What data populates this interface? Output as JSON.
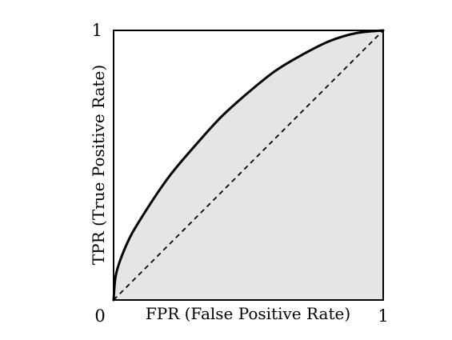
{
  "chart_data": {
    "type": "line",
    "title": "",
    "xlabel": "FPR (False Positive Rate)",
    "ylabel": "TPR (True Positive Rate)",
    "xlim": [
      0,
      1
    ],
    "ylim": [
      0,
      1
    ],
    "x_tick_labels": [
      "0",
      "1"
    ],
    "y_tick_labels": [
      "1"
    ],
    "grid": false,
    "area_under_curve_shaded": true,
    "series": [
      {
        "style": "solid",
        "x": [
          0,
          0.01,
          0.05,
          0.1,
          0.2,
          0.3,
          0.4,
          0.5,
          0.6,
          0.7,
          0.8,
          0.9,
          1.0
        ],
        "y": [
          0,
          0.1,
          0.21,
          0.3,
          0.45,
          0.57,
          0.68,
          0.77,
          0.85,
          0.91,
          0.96,
          0.99,
          1.0
        ]
      },
      {
        "style": "dashed",
        "x": [
          0,
          1
        ],
        "y": [
          0,
          1
        ]
      }
    ],
    "colors": {
      "curve": "#000000",
      "diagonal": "#000000",
      "shade": "#e5e5e5",
      "frame": "#000000"
    }
  }
}
